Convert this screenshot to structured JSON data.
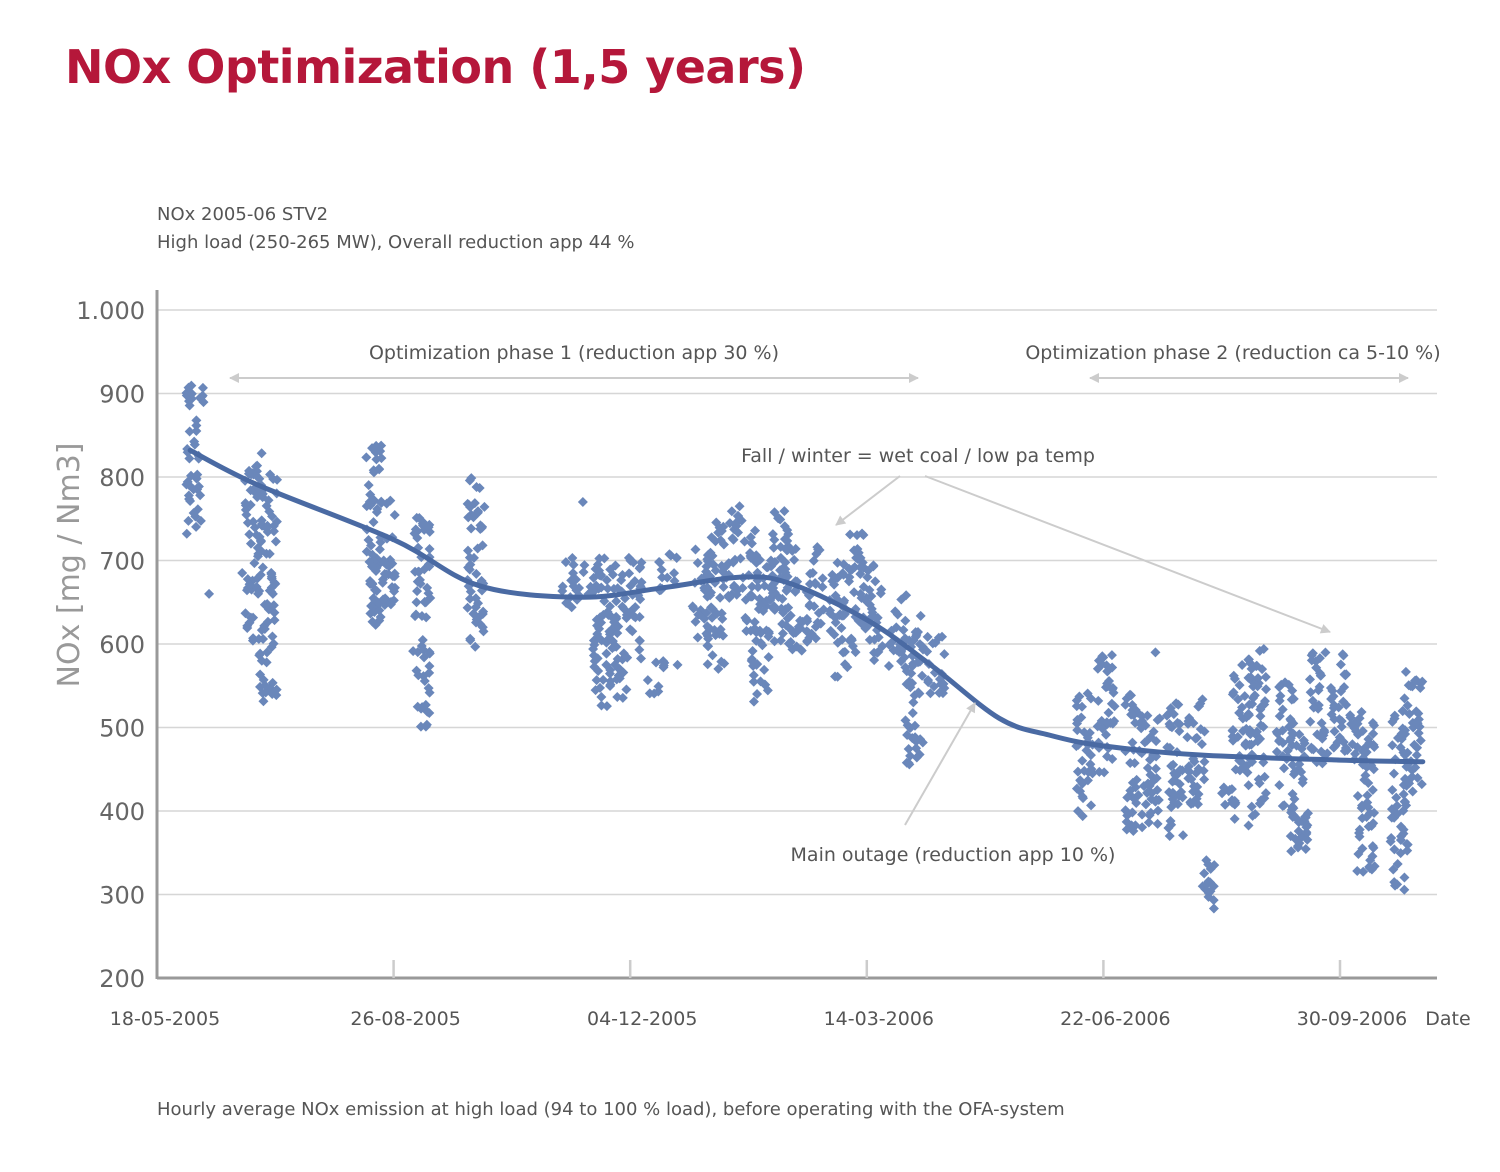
{
  "chart_data": {
    "type": "scatter",
    "title": "NOx Optimization (1,5 years)",
    "subtitle_lines": [
      "NOx 2005-06 STV2",
      "High load (250-265 MW), Overall reduction app 44 %"
    ],
    "caption": "Hourly average NOx emission at high load (94 to 100 % load), before operating with the OFA-system",
    "xlabel": "Date",
    "ylabel": "NOx [mg / Nm3]",
    "ylim": [
      200,
      1000
    ],
    "xlim": [
      "2005-05-18",
      "2006-11-10"
    ],
    "yticks": [
      200,
      300,
      400,
      500,
      600,
      700,
      800,
      900,
      1000
    ],
    "ytick_labels": [
      "200",
      "300",
      "400",
      "500",
      "600",
      "700",
      "800",
      "900",
      "1.000"
    ],
    "xticks": [
      "2005-05-18",
      "2005-08-26",
      "2005-12-04",
      "2006-03-14",
      "2006-06-22",
      "2006-09-30"
    ],
    "xtick_labels": [
      "18-05-2005",
      "26-08-2005",
      "04-12-2005",
      "14-03-2006",
      "22-06-2006",
      "30-09-2006"
    ],
    "grid": "horizontal",
    "colors": {
      "title": "#b5173a",
      "points": "#6a87ba",
      "trend": "#4a6aa3",
      "grid": "#d6d6d6",
      "axis": "#999999",
      "annotation": "#cccccc",
      "text": "#555555"
    },
    "scatter_ranges": {
      "description_fields": [
        "date",
        "min",
        "max"
      ],
      "values": [
        [
          "2005-06-03",
          730,
          910
        ],
        [
          "2005-06-09",
          660,
          660
        ],
        [
          "2005-06-23",
          685,
          685
        ],
        [
          "2005-06-28",
          600,
          830
        ],
        [
          "2005-07-04",
          530,
          815
        ],
        [
          "2005-08-18",
          620,
          840
        ],
        [
          "2005-08-23",
          640,
          775
        ],
        [
          "2005-09-07",
          500,
          755
        ],
        [
          "2005-09-30",
          595,
          805
        ],
        [
          "2005-11-09",
          635,
          705
        ],
        [
          "2005-11-14",
          770,
          770
        ],
        [
          "2005-11-18",
          650,
          700
        ],
        [
          "2005-11-22",
          525,
          705
        ],
        [
          "2005-11-29",
          530,
          700
        ],
        [
          "2005-12-05",
          580,
          705
        ],
        [
          "2005-12-15",
          540,
          580
        ],
        [
          "2005-12-20",
          650,
          715
        ],
        [
          "2005-12-24",
          575,
          575
        ],
        [
          "2006-01-03",
          595,
          720
        ],
        [
          "2006-01-09",
          565,
          750
        ],
        [
          "2006-01-17",
          650,
          765
        ],
        [
          "2006-01-25",
          610,
          740
        ],
        [
          "2006-01-28",
          530,
          620
        ],
        [
          "2006-02-02",
          600,
          700
        ],
        [
          "2006-02-05",
          660,
          765
        ],
        [
          "2006-02-09",
          600,
          720
        ],
        [
          "2006-02-14",
          580,
          630
        ],
        [
          "2006-02-20",
          600,
          720
        ],
        [
          "2006-03-02",
          560,
          700
        ],
        [
          "2006-03-09",
          590,
          735
        ],
        [
          "2006-03-17",
          580,
          700
        ],
        [
          "2006-03-27",
          570,
          660
        ],
        [
          "2006-04-03",
          450,
          640
        ],
        [
          "2006-04-12",
          540,
          620
        ],
        [
          "2006-06-14",
          390,
          545
        ],
        [
          "2006-06-23",
          440,
          595
        ],
        [
          "2006-07-05",
          370,
          540
        ],
        [
          "2006-07-12",
          380,
          520
        ],
        [
          "2006-07-14",
          590,
          590
        ],
        [
          "2006-07-22",
          370,
          530
        ],
        [
          "2006-07-31",
          400,
          540
        ],
        [
          "2006-08-06",
          280,
          345
        ],
        [
          "2006-08-14",
          380,
          430
        ],
        [
          "2006-08-19",
          440,
          575
        ],
        [
          "2006-08-26",
          380,
          595
        ],
        [
          "2006-09-07",
          390,
          555
        ],
        [
          "2006-09-13",
          350,
          500
        ],
        [
          "2006-09-21",
          450,
          590
        ],
        [
          "2006-09-29",
          470,
          590
        ],
        [
          "2006-10-06",
          460,
          520
        ],
        [
          "2006-10-11",
          320,
          510
        ],
        [
          "2006-10-25",
          305,
          520
        ],
        [
          "2006-10-31",
          420,
          570
        ]
      ]
    },
    "trend": {
      "type": "line",
      "x": [
        "2005-06-01",
        "2005-06-30",
        "2005-08-26",
        "2005-10-01",
        "2005-11-13",
        "2005-12-17",
        "2006-01-19",
        "2006-02-09",
        "2006-03-14",
        "2006-04-10",
        "2006-05-09",
        "2006-05-30",
        "2006-06-22",
        "2006-08-02",
        "2006-09-30",
        "2006-11-04"
      ],
      "y": [
        832,
        790,
        725,
        670,
        656,
        667,
        680,
        673,
        629,
        575,
        511,
        491,
        478,
        467,
        461,
        459
      ]
    },
    "annotations": {
      "phase1": "Optimization phase 1 (reduction app 30 %)",
      "phase2": "Optimization phase 2 (reduction ca 5-10 %)",
      "fall_winter": "Fall / winter = wet coal  / low pa temp",
      "main_outage": "Main outage (reduction app 10 %)"
    }
  }
}
